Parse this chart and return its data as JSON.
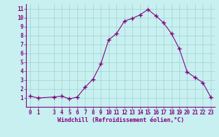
{
  "x": [
    0,
    1,
    3,
    4,
    5,
    6,
    7,
    8,
    9,
    10,
    11,
    12,
    13,
    14,
    15,
    16,
    17,
    18,
    19,
    20,
    21,
    22,
    23
  ],
  "y": [
    1.2,
    1.0,
    1.1,
    1.2,
    0.9,
    1.1,
    2.2,
    3.1,
    4.8,
    7.5,
    8.2,
    9.6,
    9.9,
    10.3,
    10.9,
    10.2,
    9.4,
    8.2,
    6.5,
    3.9,
    3.3,
    2.7,
    1.1
  ],
  "line_color": "#800080",
  "marker": "+",
  "marker_size": 4,
  "bg_color": "#c8f0f0",
  "grid_color": "#a0d0d0",
  "xlabel": "Windchill (Refroidissement éolien,°C)",
  "xlim": [
    -0.5,
    23.5
  ],
  "ylim": [
    0,
    11.5
  ],
  "yticks": [
    1,
    2,
    3,
    4,
    5,
    6,
    7,
    8,
    9,
    10,
    11
  ],
  "xticks": [
    0,
    1,
    3,
    4,
    5,
    6,
    7,
    8,
    9,
    10,
    11,
    12,
    13,
    14,
    15,
    16,
    17,
    18,
    19,
    20,
    21,
    22,
    23
  ],
  "tick_color": "#800080",
  "label_color": "#800080",
  "spine_color": "#800080",
  "tick_labelsize": 5.5,
  "xlabel_fontsize": 6.0,
  "linewidth": 0.8,
  "markeredgewidth": 1.0
}
